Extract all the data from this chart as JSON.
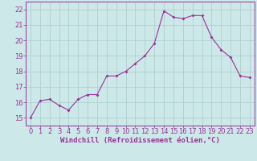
{
  "x": [
    0,
    1,
    2,
    3,
    4,
    5,
    6,
    7,
    8,
    9,
    10,
    11,
    12,
    13,
    14,
    15,
    16,
    17,
    18,
    19,
    20,
    21,
    22,
    23
  ],
  "y": [
    15.0,
    16.1,
    16.2,
    15.8,
    15.5,
    16.2,
    16.5,
    16.5,
    17.7,
    17.7,
    18.0,
    18.5,
    19.0,
    19.8,
    21.9,
    21.5,
    21.4,
    21.6,
    21.6,
    20.2,
    19.4,
    18.9,
    17.7,
    17.6
  ],
  "line_color": "#993399",
  "marker": "D",
  "marker_size": 2.0,
  "bg_color": "#cce8e8",
  "grid_color": "#aacccc",
  "xlabel": "Windchill (Refroidissement éolien,°C)",
  "xlabel_color": "#993399",
  "tick_color": "#993399",
  "ylim": [
    14.5,
    22.5
  ],
  "xlim": [
    -0.5,
    23.5
  ],
  "yticks": [
    15,
    16,
    17,
    18,
    19,
    20,
    21,
    22
  ],
  "xticks": [
    0,
    1,
    2,
    3,
    4,
    5,
    6,
    7,
    8,
    9,
    10,
    11,
    12,
    13,
    14,
    15,
    16,
    17,
    18,
    19,
    20,
    21,
    22,
    23
  ],
  "tick_fontsize": 6.0,
  "xlabel_fontsize": 6.5,
  "line_width": 0.8
}
